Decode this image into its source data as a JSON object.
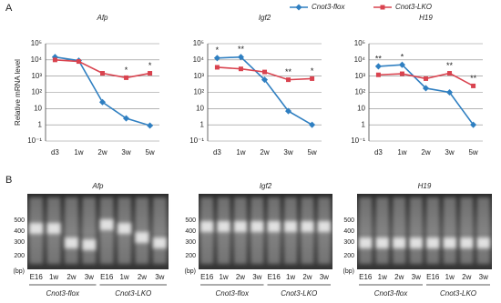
{
  "panels": {
    "a": "A",
    "b": "B"
  },
  "chart_data": [
    {
      "type": "line",
      "title": "Afp",
      "y_label": "Relative mRNA level",
      "log_scale": true,
      "legend": "top",
      "categories": [
        "d3",
        "1w",
        "2w",
        "3w",
        "5w"
      ],
      "series": [
        {
          "name": "Cnot3-flox",
          "color": "#2f7fc1",
          "values": [
            15000,
            9000,
            25,
            2.5,
            0.9
          ]
        },
        {
          "name": "Cnot3-LKO",
          "color": "#d9434f",
          "values": [
            10000,
            8000,
            1500,
            800,
            1500
          ]
        }
      ],
      "ylim": [
        0.1,
        100000
      ],
      "yticks": [
        {
          "value": 100000,
          "label": "10⁵"
        },
        {
          "value": 10000,
          "label": "10⁴"
        },
        {
          "value": 1000,
          "label": "10³"
        },
        {
          "value": 100,
          "label": "10²"
        },
        10,
        1,
        {
          "value": 0.1,
          "label": "10⁻¹"
        }
      ],
      "grid": true,
      "annotations": [
        {
          "x": "3w",
          "text": "*"
        },
        {
          "x": "5w",
          "text": "*"
        }
      ]
    },
    {
      "type": "line",
      "title": "Igf2",
      "log_scale": true,
      "categories": [
        "d3",
        "1w",
        "2w",
        "3w",
        "5w"
      ],
      "series": [
        {
          "name": "Cnot3-flox",
          "color": "#2f7fc1",
          "values": [
            13000,
            15000,
            600,
            7,
            1
          ]
        },
        {
          "name": "Cnot3-LKO",
          "color": "#d9434f",
          "values": [
            3500,
            2800,
            1800,
            600,
            700
          ]
        }
      ],
      "ylim": [
        0.1,
        100000
      ],
      "yticks": [
        {
          "value": 100000,
          "label": "10⁵"
        },
        {
          "value": 10000,
          "label": "10⁴"
        },
        {
          "value": 1000,
          "label": "10³"
        },
        {
          "value": 100,
          "label": "10²"
        },
        10,
        1,
        {
          "value": 0.1,
          "label": "10⁻¹"
        }
      ],
      "grid": true,
      "annotations": [
        {
          "x": "d3",
          "text": "*"
        },
        {
          "x": "1w",
          "text": "**"
        },
        {
          "x": "3w",
          "text": "**"
        },
        {
          "x": "5w",
          "text": "*"
        }
      ]
    },
    {
      "type": "line",
      "title": "H19",
      "log_scale": true,
      "categories": [
        "d3",
        "1w",
        "2w",
        "3w",
        "5w"
      ],
      "series": [
        {
          "name": "Cnot3-flox",
          "color": "#2f7fc1",
          "values": [
            4000,
            5000,
            180,
            100,
            1
          ]
        },
        {
          "name": "Cnot3-LKO",
          "color": "#d9434f",
          "values": [
            1200,
            1400,
            700,
            1500,
            250
          ]
        }
      ],
      "ylim": [
        0.1,
        100000
      ],
      "yticks": [
        {
          "value": 100000,
          "label": "10⁵"
        },
        {
          "value": 10000,
          "label": "10⁴"
        },
        {
          "value": 1000,
          "label": "10³"
        },
        {
          "value": 100,
          "label": "10²"
        },
        10,
        1,
        {
          "value": 0.1,
          "label": "10⁻¹"
        }
      ],
      "grid": true,
      "annotations": [
        {
          "x": "d3",
          "text": "**"
        },
        {
          "x": "1w",
          "text": "*"
        },
        {
          "x": "3w",
          "text": "**"
        },
        {
          "x": "5w",
          "text": "**"
        }
      ]
    }
  ],
  "gels": [
    {
      "title": "Afp",
      "ladder": [
        "500",
        "400",
        "300",
        "200",
        "(bp)"
      ],
      "lanes": [
        "E16",
        "1w",
        "2w",
        "3w",
        "E16",
        "1w",
        "2w",
        "3w"
      ],
      "groups": [
        "Cnot3-flox",
        "Cnot3-LKO"
      ]
    },
    {
      "title": "Igf2",
      "ladder": [
        "500",
        "400",
        "300",
        "200",
        "(bp)"
      ],
      "lanes": [
        "E16",
        "1w",
        "2w",
        "3w",
        "E16",
        "1w",
        "2w",
        "3w"
      ],
      "groups": [
        "Cnot3-flox",
        "Cnot3-LKO"
      ]
    },
    {
      "title": "H19",
      "ladder": [
        "500",
        "400",
        "300",
        "200",
        "(bp)"
      ],
      "lanes": [
        "E16",
        "1w",
        "2w",
        "3w",
        "E16",
        "1w",
        "2w",
        "3w"
      ],
      "groups": [
        "Cnot3-flox",
        "Cnot3-LKO"
      ]
    }
  ]
}
